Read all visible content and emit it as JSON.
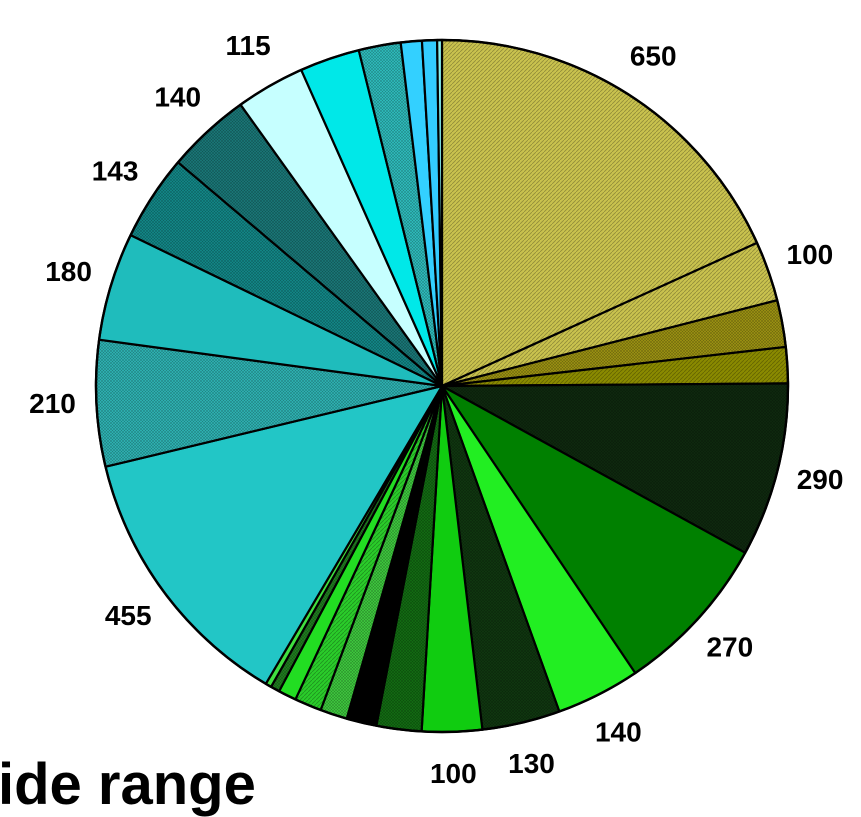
{
  "chart_data": {
    "type": "pie",
    "title": "",
    "legend": "none",
    "start_angle_deg": 0,
    "direction": "clockwise",
    "labels": [
      "650",
      "100",
      "290",
      "270",
      "140",
      "130",
      "100",
      "455",
      "210",
      "180",
      "143",
      "140",
      "115"
    ],
    "slices": [
      {
        "value": 650,
        "label": "650",
        "color": "#c9c24e",
        "pattern": "diagonal"
      },
      {
        "value": 100,
        "label": "100",
        "color": "#c9c24e",
        "pattern": "diagonal"
      },
      {
        "value": 78,
        "label": "",
        "color": "#9e9413",
        "pattern": "crosshatch"
      },
      {
        "value": 60,
        "label": "",
        "color": "#8a8a00",
        "pattern": "diagonal"
      },
      {
        "value": 290,
        "label": "290",
        "color": "#0f2a0f",
        "pattern": "crosshatch"
      },
      {
        "value": 270,
        "label": "270",
        "color": "#008000",
        "pattern": "solid"
      },
      {
        "value": 140,
        "label": "140",
        "color": "#22ee22",
        "pattern": "solid"
      },
      {
        "value": 130,
        "label": "130",
        "color": "#103810",
        "pattern": "crosshatch"
      },
      {
        "value": 100,
        "label": "100",
        "color": "#10cc10",
        "pattern": "solid"
      },
      {
        "value": 75,
        "label": "",
        "color": "#136e13",
        "pattern": "crosshatch"
      },
      {
        "value": 50,
        "label": "",
        "color": "#000000",
        "pattern": "solid"
      },
      {
        "value": 45,
        "label": "",
        "color": "#3fcc3f",
        "pattern": "crosshatch"
      },
      {
        "value": 45,
        "label": "",
        "color": "#2acc2a",
        "pattern": "diagonal"
      },
      {
        "value": 30,
        "label": "",
        "color": "#22dd22",
        "pattern": "solid"
      },
      {
        "value": 15,
        "label": "",
        "color": "#208020",
        "pattern": "crosshatch"
      },
      {
        "value": 10,
        "label": "",
        "color": "#40e040",
        "pattern": "solid"
      },
      {
        "value": 455,
        "label": "455",
        "color": "#22c6c6",
        "pattern": "solid"
      },
      {
        "value": 210,
        "label": "210",
        "color": "#2fb7b7",
        "pattern": "crosshatch"
      },
      {
        "value": 180,
        "label": "180",
        "color": "#1fbcbc",
        "pattern": "solid"
      },
      {
        "value": 143,
        "label": "143",
        "color": "#138a8a",
        "pattern": "crosshatch"
      },
      {
        "value": 140,
        "label": "140",
        "color": "#1a7a7a",
        "pattern": "crosshatch"
      },
      {
        "value": 115,
        "label": "115",
        "color": "#c6ffff",
        "pattern": "solid"
      },
      {
        "value": 100,
        "label": "",
        "color": "#00e8e8",
        "pattern": "solid"
      },
      {
        "value": 70,
        "label": "",
        "color": "#2fc0c0",
        "pattern": "crosshatch"
      },
      {
        "value": 35,
        "label": "",
        "color": "#33d0ff",
        "pattern": "solid"
      },
      {
        "value": 25,
        "label": "",
        "color": "#33ccff",
        "pattern": "solid"
      },
      {
        "value": 8,
        "label": "",
        "color": "#88f0f0",
        "pattern": "solid"
      }
    ]
  },
  "caption": {
    "text": "ide range"
  }
}
